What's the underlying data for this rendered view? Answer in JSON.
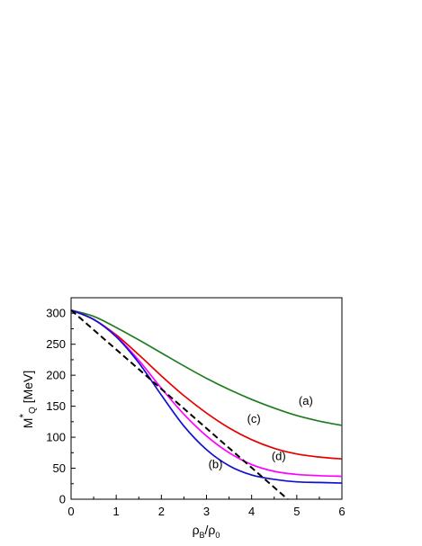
{
  "chart_data": {
    "type": "line",
    "xlim": [
      0,
      6
    ],
    "ylim": [
      0,
      325
    ],
    "x_ticks": [
      0,
      1,
      2,
      3,
      4,
      5,
      6
    ],
    "y_ticks": [
      0,
      50,
      100,
      150,
      200,
      250,
      300
    ],
    "xlabel": {
      "main": "ρ",
      "sub": "B",
      "sep": "/ρ",
      "sub2": "0"
    },
    "ylabel": {
      "main": "M",
      "sup": "*",
      "sub": "Q",
      "unit": " [MeV]"
    },
    "grid": false,
    "legend": "none",
    "series": [
      {
        "label": "(a)",
        "color": "#1e7d1e",
        "style": "solid",
        "x": [
          0,
          0.5,
          1,
          1.5,
          2,
          2.5,
          3,
          3.5,
          4,
          4.5,
          5,
          5.5,
          6
        ],
        "y": [
          305,
          295,
          277,
          257,
          236,
          215,
          195,
          177,
          161,
          147,
          135,
          126,
          119
        ]
      },
      {
        "label": "(c)",
        "color": "#e60000",
        "style": "solid",
        "x": [
          0,
          0.5,
          1,
          1.5,
          2,
          2.5,
          3,
          3.5,
          4,
          4.5,
          5,
          5.5,
          6
        ],
        "y": [
          305,
          290,
          265,
          233,
          199,
          167,
          139,
          115,
          96,
          82,
          73,
          68,
          65
        ]
      },
      {
        "label": "(d)",
        "color": "#ff00ff",
        "style": "solid",
        "x": [
          0,
          0.5,
          1,
          1.5,
          2,
          2.5,
          3,
          3.5,
          4,
          4.5,
          5,
          5.5,
          6
        ],
        "y": [
          305,
          290,
          263,
          224,
          179,
          137,
          102,
          75,
          56,
          45,
          40,
          38,
          37
        ]
      },
      {
        "label": "(b)",
        "color": "#1010d0",
        "style": "solid",
        "x": [
          0,
          0.5,
          1,
          1.5,
          2,
          2.5,
          3,
          3.5,
          4,
          4.5,
          5,
          5.5,
          6
        ],
        "y": [
          305,
          290,
          262,
          220,
          168,
          118,
          80,
          54,
          39,
          32,
          28,
          27,
          26
        ]
      },
      {
        "label": "",
        "color": "#000000",
        "style": "dashed",
        "x": [
          0,
          4.8
        ],
        "y": [
          305,
          0
        ]
      }
    ],
    "annotations": [
      {
        "text": "(a)",
        "x": 5.2,
        "y": 152
      },
      {
        "text": "(c)",
        "x": 4.05,
        "y": 123
      },
      {
        "text": "(d)",
        "x": 4.6,
        "y": 63
      },
      {
        "text": "(b)",
        "x": 3.2,
        "y": 50
      }
    ]
  }
}
